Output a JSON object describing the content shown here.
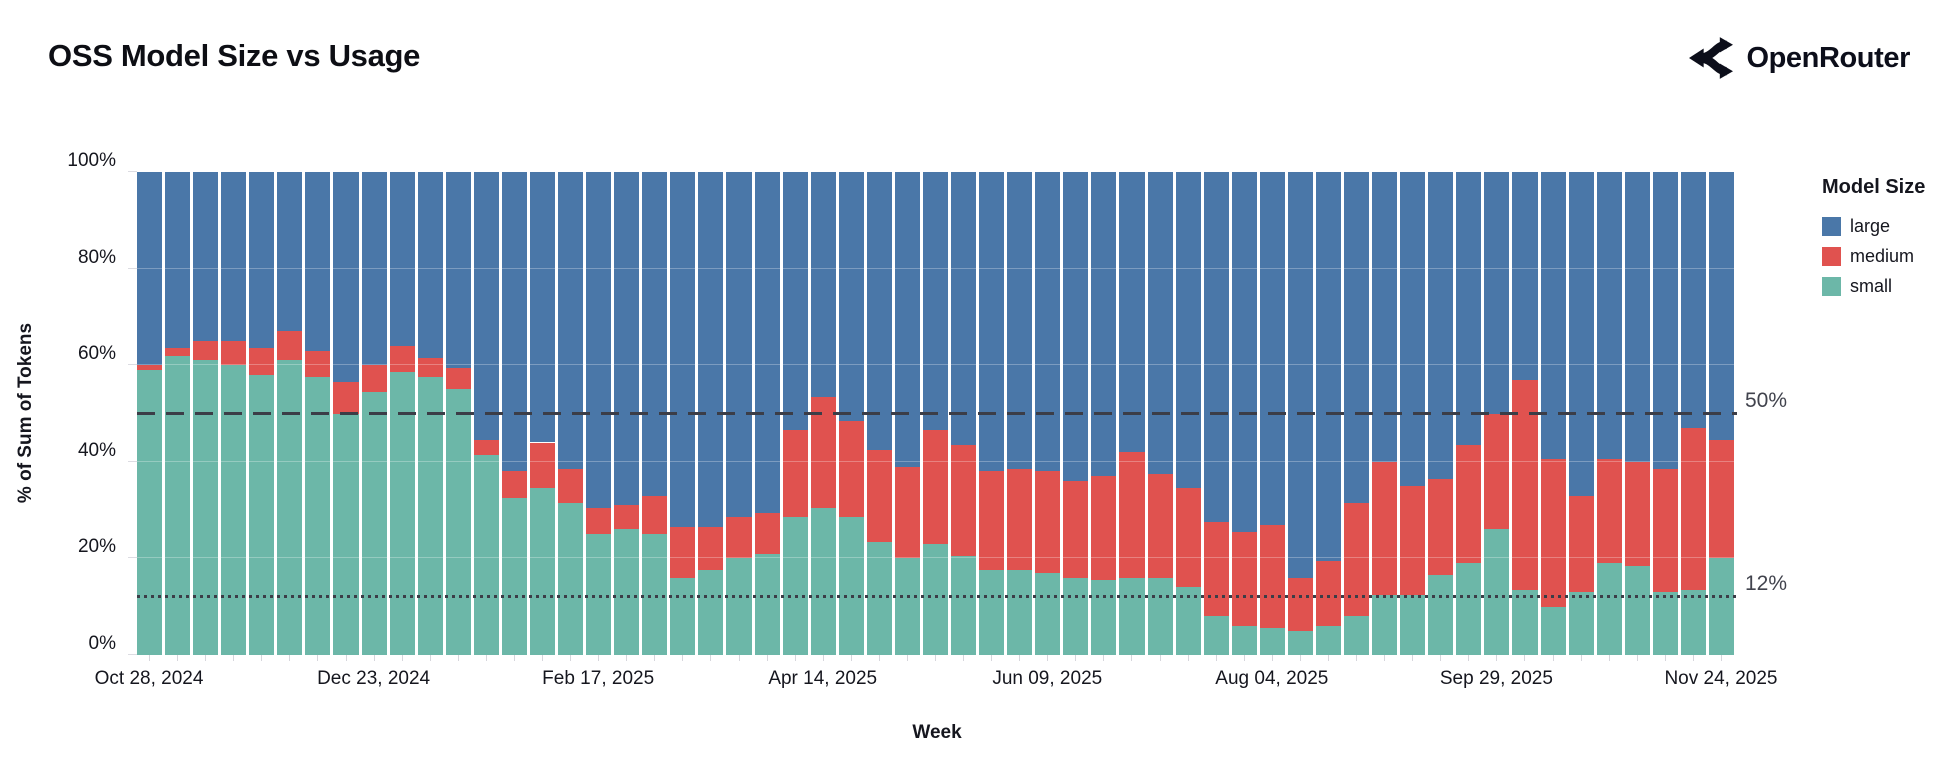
{
  "header": {
    "title": "OSS Model Size vs Usage",
    "brand": "OpenRouter"
  },
  "chart_data": {
    "type": "bar",
    "stacked": true,
    "normalized_percent": true,
    "title": "OSS Model Size vs Usage",
    "xlabel": "Week",
    "ylabel": "% of Sum of Tokens",
    "legend_title": "Model Size",
    "legend_position": "right",
    "grid": "faint horizontal lines every 20%",
    "ylim": [
      0,
      100
    ],
    "n_bars": 57,
    "y_tick_labels": [
      "0%",
      "20%",
      "40%",
      "60%",
      "80%",
      "100%"
    ],
    "x_tick_labels": [
      "Oct 28, 2024",
      "Dec 23, 2024",
      "Feb 17, 2025",
      "Apr 14, 2025",
      "Jun 09, 2025",
      "Aug 04, 2025",
      "Sep 29, 2025",
      "Nov 24, 2025"
    ],
    "x_tick_indices": [
      0,
      8,
      16,
      24,
      32,
      40,
      48,
      56
    ],
    "stack_order": [
      "small",
      "medium",
      "large"
    ],
    "series": [
      {
        "name": "large",
        "color": "#4a77a8",
        "values": [
          40,
          36.5,
          35,
          35,
          36.5,
          33,
          37,
          43.5,
          40,
          36,
          38.5,
          40.5,
          55.5,
          62,
          56,
          61.5,
          69.5,
          69,
          67,
          73.5,
          73.5,
          71.5,
          70.5,
          53.5,
          46.5,
          51.5,
          57.5,
          61,
          53.5,
          56.5,
          62,
          61.5,
          62,
          64,
          63,
          58,
          62.5,
          65.5,
          72.5,
          74.5,
          73,
          84,
          80.5,
          68.5,
          60,
          65,
          63.5,
          56.5,
          50,
          43,
          59.5,
          67,
          59.5,
          60,
          61.5,
          53,
          55.5
        ]
      },
      {
        "name": "medium",
        "color": "#e0524f",
        "values": [
          1,
          1.5,
          4,
          5,
          5.5,
          6,
          5.5,
          6.5,
          5.5,
          5.5,
          4,
          4.5,
          3,
          5.5,
          9.5,
          7,
          5.5,
          5,
          8,
          10.5,
          9,
          8.5,
          8.5,
          18,
          23,
          20,
          19,
          19,
          23.5,
          23,
          20.5,
          21,
          21,
          20,
          21.5,
          26,
          21.5,
          20.5,
          19.5,
          19.5,
          21.5,
          11,
          13.5,
          23.5,
          27.5,
          22.5,
          20,
          24.5,
          24,
          43.5,
          30.5,
          20,
          21.5,
          21.5,
          25.5,
          33.5,
          24.5
        ]
      },
      {
        "name": "small",
        "color": "#6cb7a8",
        "values": [
          59,
          62,
          61,
          60,
          58,
          61,
          57.5,
          50,
          54.5,
          58.5,
          57.5,
          55,
          41.5,
          32.5,
          34.5,
          31.5,
          25,
          26,
          25,
          16,
          17.5,
          20,
          21,
          28.5,
          30.5,
          28.5,
          23.5,
          20,
          23,
          20.5,
          17.5,
          17.5,
          17,
          16,
          15.5,
          16,
          16,
          14,
          8,
          6,
          5.5,
          5,
          6,
          8,
          12.5,
          12.5,
          16.5,
          19,
          26,
          13.5,
          10,
          13,
          19,
          18.5,
          13,
          13.5,
          20
        ]
      }
    ],
    "reference_lines": [
      {
        "label": "50%",
        "value": 50,
        "style": "dashed"
      },
      {
        "label": "12%",
        "value": 12,
        "style": "dotted"
      }
    ]
  }
}
